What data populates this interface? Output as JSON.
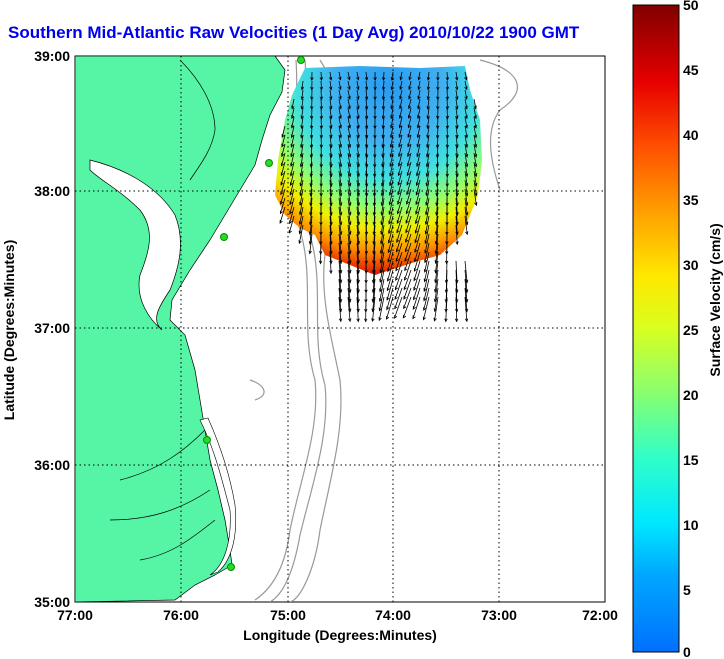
{
  "title": "Southern Mid-Atlantic Raw Velocities (1 Day Avg) 2010/10/22 1900 GMT",
  "x_axis": {
    "label": "Longitude (Degrees:Minutes)",
    "ticks": [
      "77:00",
      "76:00",
      "75:00",
      "74:00",
      "73:00",
      "72:00"
    ]
  },
  "y_axis": {
    "label": "Latitude (Degrees:Minutes)",
    "ticks": [
      "39:00",
      "38:00",
      "37:00",
      "36:00",
      "35:00"
    ]
  },
  "colorbar": {
    "label": "Surface Velocity (cm/s)",
    "ticks": [
      "50",
      "45",
      "40",
      "35",
      "30",
      "25",
      "20",
      "15",
      "10",
      "5",
      "0"
    ],
    "min": 0,
    "max": 50
  },
  "colors": {
    "land": "#55f5a5",
    "coast": "#000000",
    "bathymetry": "#888888",
    "title": "#0000ee",
    "station": "#22dd22"
  }
}
